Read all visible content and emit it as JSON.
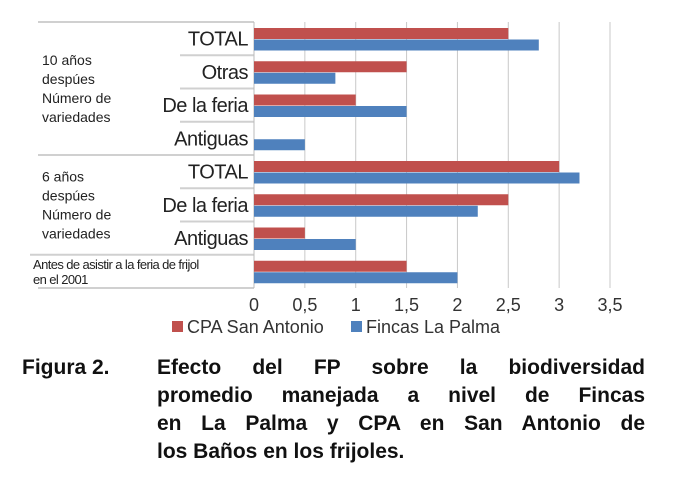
{
  "chart_data": {
    "type": "bar",
    "orientation": "horizontal",
    "groups": [
      {
        "label": [
          "10 años",
          "despúes",
          "Número de",
          "variedades"
        ],
        "categories": [
          "TOTAL",
          "Otras",
          "De la feria",
          "Antiguas"
        ]
      },
      {
        "label": [
          "6 años",
          "despúes",
          "Número de",
          "variedades"
        ],
        "categories": [
          "TOTAL",
          "De la feria",
          "Antiguas"
        ]
      },
      {
        "label": [
          "Antes de asistir a la feria de frijol",
          "en el 2001"
        ],
        "categories": [
          ""
        ]
      }
    ],
    "series": [
      {
        "name": "CPA San Antonio",
        "color": "#c0504d",
        "values": [
          2.5,
          1.5,
          1,
          0,
          3,
          2.5,
          0.5,
          1.5
        ]
      },
      {
        "name": "Fincas La Palma",
        "color": "#4f81bd",
        "values": [
          2.8,
          0.8,
          1.5,
          0.5,
          3.2,
          2.2,
          1,
          2
        ]
      }
    ],
    "xlim": [
      0,
      3.5
    ],
    "xticks": [
      "0",
      "0,5",
      "1",
      "1,5",
      "2",
      "2,5",
      "3",
      "3,5"
    ],
    "grid": true,
    "legend": "bottom"
  },
  "caption": {
    "label": "Figura 2.",
    "lines": [
      "Efecto del FP sobre la biodiversidad",
      "promedio manejada a nivel de Fincas",
      "en La Palma y CPA en San Antonio de",
      "los Baños en los frijoles."
    ]
  }
}
